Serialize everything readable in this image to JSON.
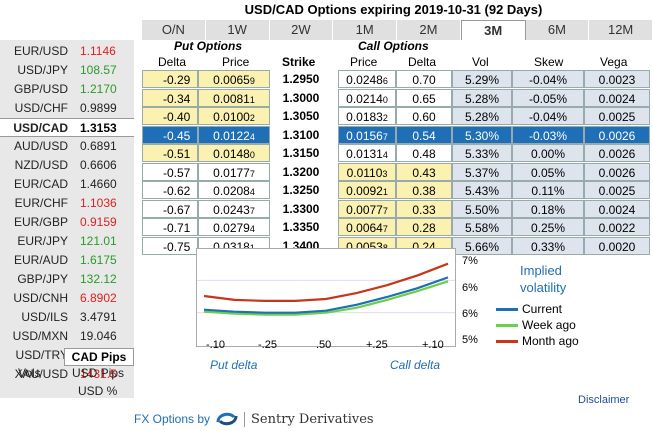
{
  "title": "USD/CAD Options expiring 2019-10-31 (92 Days)",
  "tabs": [
    "O/N",
    "1W",
    "2W",
    "1M",
    "2M",
    "3M",
    "6M",
    "12M"
  ],
  "active_tab": "3M",
  "pairs": [
    {
      "name": "EUR/USD",
      "value": "1.1146",
      "dir": "down"
    },
    {
      "name": "USD/JPY",
      "value": "108.57",
      "dir": "up"
    },
    {
      "name": "GBP/USD",
      "value": "1.2170",
      "dir": "up"
    },
    {
      "name": "USD/CHF",
      "value": "0.9899",
      "dir": "flat"
    },
    {
      "name": "USD/CAD",
      "value": "1.3153",
      "dir": "flat"
    },
    {
      "name": "AUD/USD",
      "value": "0.6891",
      "dir": "flat"
    },
    {
      "name": "NZD/USD",
      "value": "0.6606",
      "dir": "flat"
    },
    {
      "name": "EUR/CAD",
      "value": "1.4660",
      "dir": "flat"
    },
    {
      "name": "EUR/CHF",
      "value": "1.1036",
      "dir": "down"
    },
    {
      "name": "EUR/GBP",
      "value": "0.9159",
      "dir": "down"
    },
    {
      "name": "EUR/JPY",
      "value": "121.01",
      "dir": "up"
    },
    {
      "name": "EUR/AUD",
      "value": "1.6175",
      "dir": "up"
    },
    {
      "name": "GBP/JPY",
      "value": "132.12",
      "dir": "up"
    },
    {
      "name": "USD/CNH",
      "value": "6.8902",
      "dir": "down"
    },
    {
      "name": "USD/ILS",
      "value": "3.4791",
      "dir": "flat"
    },
    {
      "name": "USD/MXN",
      "value": "19.046",
      "dir": "flat"
    },
    {
      "name": "USD/TRY",
      "value": "5.5264",
      "dir": "down"
    },
    {
      "name": "XAU/USD",
      "value": "1431.5",
      "dir": "down"
    }
  ],
  "selected_pair": "USD/CAD",
  "units": {
    "selected": "CAD Pips",
    "label": "Vols",
    "options": [
      "USD Pips",
      "USD %"
    ]
  },
  "headers": {
    "put_group": "Put Options",
    "call_group": "Call Options",
    "delta": "Delta",
    "price": "Price",
    "strike": "Strike",
    "vol": "Vol",
    "skew": "Skew",
    "vega": "Vega"
  },
  "rows": [
    {
      "put_delta": "-0.29",
      "put_price": "0.0065",
      "put_price_sub": "9",
      "strike": "1.2950",
      "call_price": "0.0248",
      "call_price_sub": "6",
      "call_delta": "0.70",
      "vol": "5.29%",
      "skew": "-0.04%",
      "vega": "0.0023",
      "itm": "put"
    },
    {
      "put_delta": "-0.34",
      "put_price": "0.0081",
      "put_price_sub": "1",
      "strike": "1.3000",
      "call_price": "0.0214",
      "call_price_sub": "0",
      "call_delta": "0.65",
      "vol": "5.28%",
      "skew": "-0.05%",
      "vega": "0.0024",
      "itm": "put"
    },
    {
      "put_delta": "-0.40",
      "put_price": "0.0100",
      "put_price_sub": "2",
      "strike": "1.3050",
      "call_price": "0.0183",
      "call_price_sub": "2",
      "call_delta": "0.60",
      "vol": "5.28%",
      "skew": "-0.04%",
      "vega": "0.0025",
      "itm": "put"
    },
    {
      "put_delta": "-0.45",
      "put_price": "0.0122",
      "put_price_sub": "4",
      "strike": "1.3100",
      "call_price": "0.0156",
      "call_price_sub": "7",
      "call_delta": "0.54",
      "vol": "5.30%",
      "skew": "-0.03%",
      "vega": "0.0026",
      "itm": "atm"
    },
    {
      "put_delta": "-0.51",
      "put_price": "0.0148",
      "put_price_sub": "0",
      "strike": "1.3150",
      "call_price": "0.0131",
      "call_price_sub": "4",
      "call_delta": "0.48",
      "vol": "5.33%",
      "skew": "0.00%",
      "vega": "0.0026",
      "itm": "put"
    },
    {
      "put_delta": "-0.57",
      "put_price": "0.0177",
      "put_price_sub": "7",
      "strike": "1.3200",
      "call_price": "0.0110",
      "call_price_sub": "3",
      "call_delta": "0.43",
      "vol": "5.37%",
      "skew": "0.05%",
      "vega": "0.0026",
      "itm": "call"
    },
    {
      "put_delta": "-0.62",
      "put_price": "0.0208",
      "put_price_sub": "4",
      "strike": "1.3250",
      "call_price": "0.0092",
      "call_price_sub": "1",
      "call_delta": "0.38",
      "vol": "5.43%",
      "skew": "0.11%",
      "vega": "0.0025",
      "itm": "call"
    },
    {
      "put_delta": "-0.67",
      "put_price": "0.0243",
      "put_price_sub": "7",
      "strike": "1.3300",
      "call_price": "0.0077",
      "call_price_sub": "7",
      "call_delta": "0.33",
      "vol": "5.50%",
      "skew": "0.18%",
      "vega": "0.0024",
      "itm": "call"
    },
    {
      "put_delta": "-0.71",
      "put_price": "0.0279",
      "put_price_sub": "4",
      "strike": "1.3350",
      "call_price": "0.0064",
      "call_price_sub": "7",
      "call_delta": "0.28",
      "vol": "5.58%",
      "skew": "0.25%",
      "vega": "0.0022",
      "itm": "call"
    },
    {
      "put_delta": "-0.75",
      "put_price": "0.0318",
      "put_price_sub": "1",
      "strike": "1.3400",
      "call_price": "0.0053",
      "call_price_sub": "8",
      "call_delta": "0.24",
      "vol": "5.66%",
      "skew": "0.33%",
      "vega": "0.0020",
      "itm": "call"
    }
  ],
  "chart_data": {
    "type": "line",
    "title": "Implied volatility",
    "x_ticks": [
      "-.10",
      "-.25",
      ".50",
      "+.25",
      "+.10"
    ],
    "y_ticks": [
      "7%",
      "6%",
      "6%",
      "5%"
    ],
    "ylim": [
      5,
      7
    ],
    "x": [
      0,
      1,
      2,
      3,
      4,
      5,
      6,
      7,
      8
    ],
    "series": [
      {
        "name": "Current",
        "color": "#1e6fb5",
        "values": [
          5.74,
          5.7,
          5.68,
          5.68,
          5.72,
          5.84,
          6.0,
          6.18,
          6.4
        ]
      },
      {
        "name": "Week ago",
        "color": "#6ccf4a",
        "values": [
          5.7,
          5.66,
          5.64,
          5.64,
          5.68,
          5.78,
          5.94,
          6.12,
          6.32
        ]
      },
      {
        "name": "Month ago",
        "color": "#c8361a",
        "values": [
          6.02,
          5.94,
          5.92,
          5.92,
          5.96,
          6.08,
          6.24,
          6.44,
          6.68
        ]
      }
    ],
    "put_label": "Put delta",
    "call_label": "Call delta"
  },
  "disclaimer": "Disclaimer",
  "footer": {
    "prefix": "FX Options by",
    "brand": "Sentry Derivatives"
  }
}
